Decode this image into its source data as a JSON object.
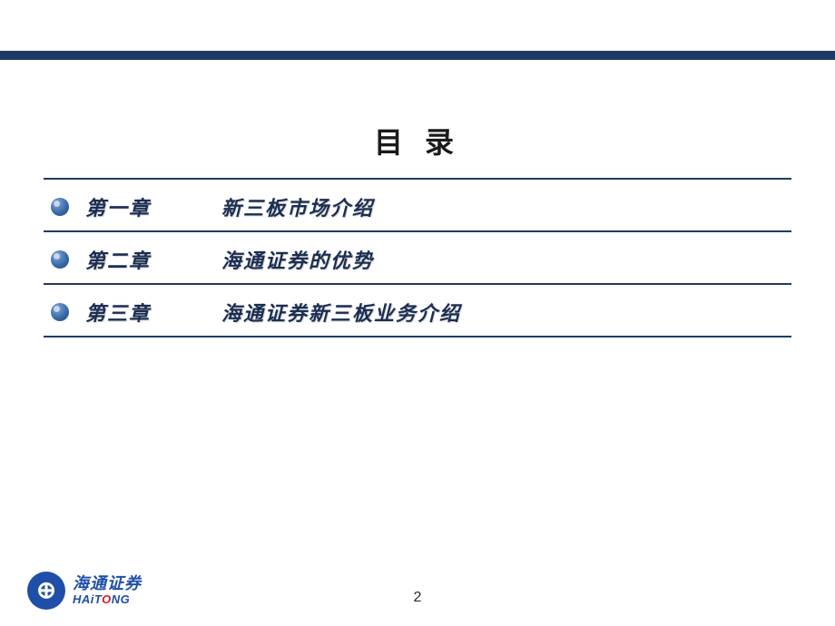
{
  "colors": {
    "navy": "#1f3a66",
    "title_text": "#1a1a1a",
    "chapter_text": "#1b2e52",
    "bullet_bg": "#3a6aa8",
    "border": "#1f3a66",
    "logo_blue": "#1f4fa8",
    "page_num": "#2a2a2a"
  },
  "title": "目 录",
  "toc": [
    {
      "label": "第一章",
      "title": "新三板市场介绍"
    },
    {
      "label": "第二章",
      "title": "海通证券的优势"
    },
    {
      "label": "第三章",
      "title": "海通证券新三板业务介绍"
    }
  ],
  "footer": {
    "logo_symbol": "⊕",
    "company_cn": "海通证券",
    "company_en_pre": "HAiT",
    "company_en_o": "O",
    "company_en_post": "NG"
  },
  "page_number": "2"
}
